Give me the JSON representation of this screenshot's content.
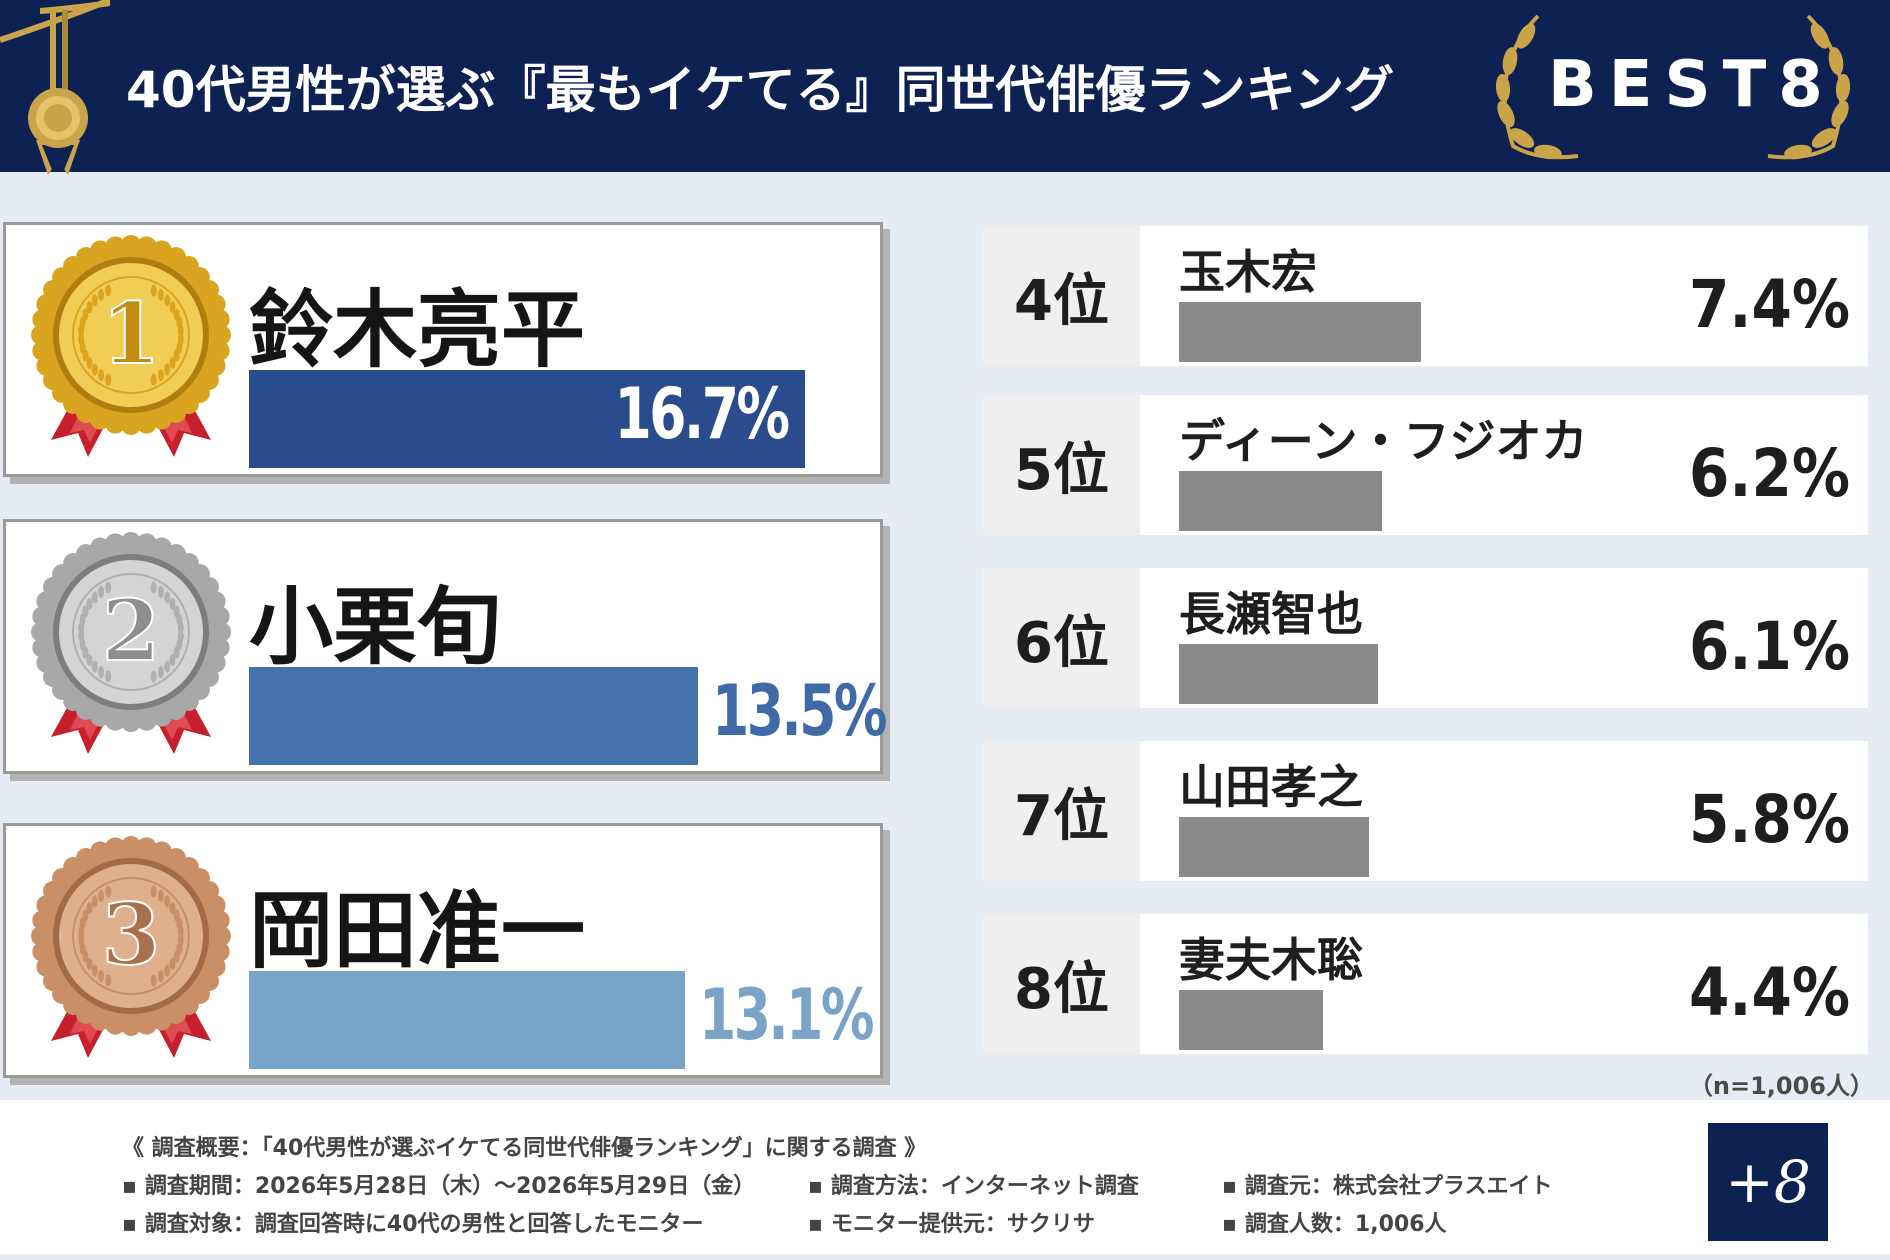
{
  "header": {
    "title": "40代男性が選ぶ『最もイケてる』同世代俳優ランキング",
    "badge": "BEST8"
  },
  "colors": {
    "header_bg": "#0d2152",
    "bar_rank1": "#2b4c8c",
    "bar_rank2": "#4472ad",
    "bar_rank3": "#7aa3c8",
    "bar_other": "#8a8a8a",
    "gold": "#d9a520",
    "silver": "#a8a8a8",
    "bronze": "#c98f66",
    "ribbon": "#c7202c"
  },
  "chart_data": {
    "type": "bar",
    "title": "40代男性が選ぶ『最もイケてる』同世代俳優ランキング",
    "xlabel": "",
    "ylabel": "",
    "unit": "%",
    "ylim": [
      0,
      16.7
    ],
    "top3": [
      {
        "rank": 1,
        "medal_number": "1",
        "medal": "gold-medal-icon",
        "name": "鈴木亮平",
        "value": 16.7,
        "label": "16.7%",
        "color": "#2b4c8c",
        "label_inside": true
      },
      {
        "rank": 2,
        "medal_number": "2",
        "medal": "silver-medal-icon",
        "name": "小栗旬",
        "value": 13.5,
        "label": "13.5%",
        "color": "#4472ad",
        "label_inside": false
      },
      {
        "rank": 3,
        "medal_number": "3",
        "medal": "bronze-medal-icon",
        "name": "岡田准一",
        "value": 13.1,
        "label": "13.1%",
        "color": "#7aa3c8",
        "label_inside": false
      }
    ],
    "others": [
      {
        "rank_label": "4位",
        "name": "玉木宏",
        "value": 7.4,
        "label": "7.4%"
      },
      {
        "rank_label": "5位",
        "name": "ディーン・フジオカ",
        "value": 6.2,
        "label": "6.2%"
      },
      {
        "rank_label": "6位",
        "name": "長瀬智也",
        "value": 6.1,
        "label": "6.1%"
      },
      {
        "rank_label": "7位",
        "name": "山田孝之",
        "value": 5.8,
        "label": "5.8%"
      },
      {
        "rank_label": "8位",
        "name": "妻夫木聡",
        "value": 4.4,
        "label": "4.4%"
      }
    ],
    "n_note": "（n=1,006人）"
  },
  "footer": {
    "survey_title": "《 調査概要：「40代男性が選ぶイケてる同世代俳優ランキング」に関する調査 》",
    "items": [
      "調査期間：2026年5月28日（木）～2026年5月29日（金）",
      "調査方法：インターネット調査",
      "調査元：株式会社プラスエイト",
      "調査対象：調査回答時に40代の男性と回答したモニター",
      "モニター提供元：サクリサ",
      "調査人数：1,006人"
    ],
    "bullet": "▪",
    "logo": "+8"
  }
}
